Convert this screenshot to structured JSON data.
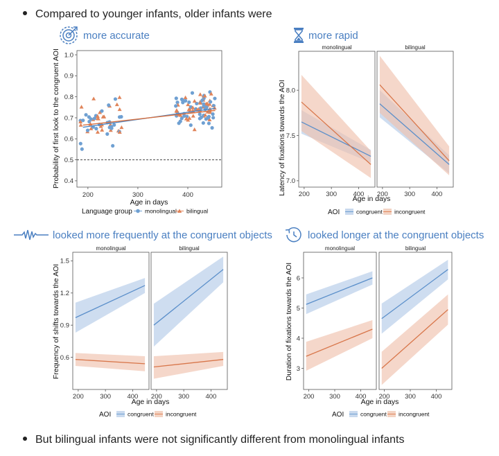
{
  "bullets": {
    "intro": "Compared to younger infants, older infants were",
    "outro": "But bilingual infants were not significantly different from monolingual infants"
  },
  "headings": {
    "accuracy": "more accurate",
    "rapid": "more rapid",
    "frequency": "looked more frequently at the congruent objects",
    "duration": "looked longer at the congruent objects"
  },
  "colors": {
    "accent": "#4a7fc1",
    "monolingual": "#6fa0d2",
    "bilingual": "#e0845a",
    "congruent": "#6fa0d2",
    "incongruent": "#e0845a"
  },
  "chart_data": [
    {
      "id": "accuracy",
      "type": "scatter",
      "ylabel": "Probability of first look to the congruent AOI",
      "xlabel": "Age in days",
      "xlim": [
        178,
        468
      ],
      "ylim": [
        0.37,
        1.02
      ],
      "xticks": [
        200,
        300,
        400
      ],
      "yticks": [
        0.4,
        0.5,
        0.6,
        0.7,
        0.8,
        0.9,
        1.0
      ],
      "ytick_labels": [
        "0.4",
        "0.5",
        "0.6",
        "0.7",
        "0.8",
        "0.9",
        "1.0"
      ],
      "reference_line": 0.5,
      "legend_title": "Language group",
      "legend": [
        "monolingual",
        "bilingual"
      ],
      "series": [
        {
          "name": "monolingual",
          "fit": [
            [
              190,
              0.655
            ],
            [
              455,
              0.745
            ]
          ]
        },
        {
          "name": "bilingual",
          "fit": [
            [
              190,
              0.665
            ],
            [
              455,
              0.735
            ]
          ]
        }
      ],
      "clusters": [
        {
          "x_range": [
            185,
            270
          ],
          "y_mean": 0.675,
          "y_sd": 0.045,
          "n": 55
        },
        {
          "x_range": [
            375,
            455
          ],
          "y_mean": 0.74,
          "y_sd": 0.035,
          "n": 95
        }
      ]
    },
    {
      "id": "rapid",
      "type": "line",
      "ylabel": "Latency of fixations towards the AOI",
      "xlabel": "Age in days",
      "panels": [
        "monolingual",
        "bilingual"
      ],
      "xlim": [
        180,
        460
      ],
      "ylim": [
        6.93,
        8.43
      ],
      "xticks": [
        200,
        300,
        400
      ],
      "yticks": [
        7.0,
        7.5,
        8.0
      ],
      "ytick_labels": [
        "7.0",
        "7.5",
        "8.0"
      ],
      "legend_title": "AOI",
      "legend": [
        "congruent",
        "incongruent"
      ],
      "series": {
        "monolingual": [
          {
            "name": "congruent",
            "x": [
              190,
              445
            ],
            "y": [
              7.65,
              7.27
            ],
            "lo": [
              7.52,
              7.2
            ],
            "hi": [
              7.78,
              7.34
            ]
          },
          {
            "name": "incongruent",
            "x": [
              190,
              445
            ],
            "y": [
              7.87,
              7.18
            ],
            "lo": [
              7.55,
              7.03
            ],
            "hi": [
              8.17,
              7.33
            ]
          }
        ],
        "bilingual": [
          {
            "name": "congruent",
            "x": [
              190,
              445
            ],
            "y": [
              7.85,
              7.18
            ],
            "lo": [
              7.7,
              7.08
            ],
            "hi": [
              8.0,
              7.28
            ]
          },
          {
            "name": "incongruent",
            "x": [
              190,
              445
            ],
            "y": [
              8.06,
              7.22
            ],
            "lo": [
              7.75,
              7.06
            ],
            "hi": [
              8.38,
              7.38
            ]
          }
        ]
      }
    },
    {
      "id": "frequency",
      "type": "line",
      "ylabel": "Frequency of shifts towards the AOI",
      "xlabel": "Age in days",
      "panels": [
        "monolingual",
        "bilingual"
      ],
      "xlim": [
        180,
        460
      ],
      "ylim": [
        0.3,
        1.58
      ],
      "xticks": [
        200,
        300,
        400
      ],
      "yticks": [
        0.6,
        0.9,
        1.2,
        1.5
      ],
      "ytick_labels": [
        "0.6",
        "0.9",
        "1.2",
        "1.5"
      ],
      "legend_title": "AOI",
      "legend": [
        "congruent",
        "incongruent"
      ],
      "series": {
        "monolingual": [
          {
            "name": "congruent",
            "x": [
              190,
              445
            ],
            "y": [
              0.97,
              1.27
            ],
            "lo": [
              0.83,
              1.2
            ],
            "hi": [
              1.11,
              1.34
            ]
          },
          {
            "name": "incongruent",
            "x": [
              190,
              445
            ],
            "y": [
              0.58,
              0.54
            ],
            "lo": [
              0.52,
              0.47
            ],
            "hi": [
              0.64,
              0.61
            ]
          }
        ],
        "bilingual": [
          {
            "name": "congruent",
            "x": [
              190,
              445
            ],
            "y": [
              0.9,
              1.42
            ],
            "lo": [
              0.7,
              1.3
            ],
            "hi": [
              1.1,
              1.54
            ]
          },
          {
            "name": "incongruent",
            "x": [
              190,
              445
            ],
            "y": [
              0.51,
              0.58
            ],
            "lo": [
              0.4,
              0.52
            ],
            "hi": [
              0.61,
              0.65
            ]
          }
        ]
      }
    },
    {
      "id": "duration",
      "type": "line",
      "ylabel": "Duration of fixations towards the AOI",
      "xlabel": "Age in days",
      "panels": [
        "monolingual",
        "bilingual"
      ],
      "xlim": [
        180,
        460
      ],
      "ylim": [
        2.3,
        6.85
      ],
      "xticks": [
        200,
        300,
        400
      ],
      "yticks": [
        3,
        4,
        5,
        6
      ],
      "ytick_labels": [
        "3",
        "4",
        "5",
        "6"
      ],
      "legend_title": "AOI",
      "legend": [
        "congruent",
        "incongruent"
      ],
      "series": {
        "monolingual": [
          {
            "name": "congruent",
            "x": [
              190,
              445
            ],
            "y": [
              5.12,
              6.0
            ],
            "lo": [
              4.8,
              5.78
            ],
            "hi": [
              5.45,
              6.22
            ]
          },
          {
            "name": "incongruent",
            "x": [
              190,
              445
            ],
            "y": [
              3.4,
              4.3
            ],
            "lo": [
              2.92,
              4.0
            ],
            "hi": [
              3.88,
              4.6
            ]
          }
        ],
        "bilingual": [
          {
            "name": "congruent",
            "x": [
              190,
              445
            ],
            "y": [
              4.65,
              6.28
            ],
            "lo": [
              4.15,
              5.95
            ],
            "hi": [
              5.15,
              6.6
            ]
          },
          {
            "name": "incongruent",
            "x": [
              190,
              445
            ],
            "y": [
              3.0,
              4.95
            ],
            "lo": [
              2.45,
              4.45
            ],
            "hi": [
              3.55,
              5.45
            ]
          }
        ]
      }
    }
  ]
}
